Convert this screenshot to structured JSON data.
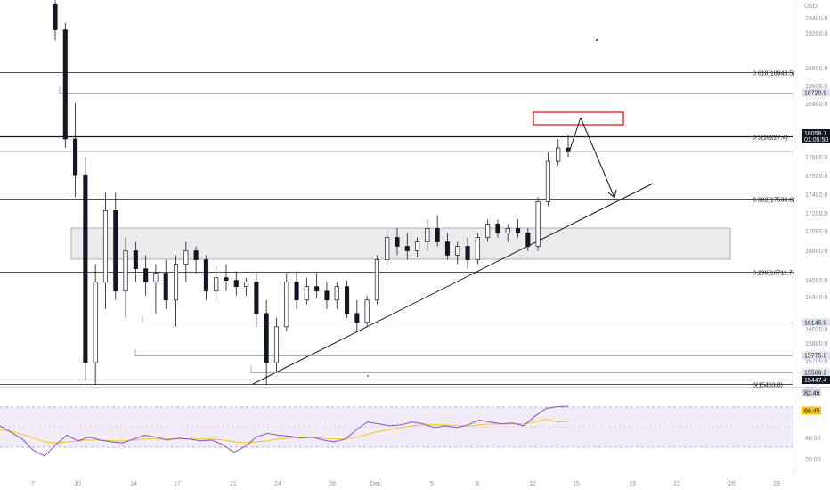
{
  "price_scale": {
    "currency_label": "USD",
    "tick_labels": [
      "19400.0",
      "19200.0",
      "18800.0",
      "18600.0",
      "18400.0",
      "17800.0",
      "17600.0",
      "17400.0",
      "17200.0",
      "17000.0",
      "16800.0",
      "16500.0",
      "16340.0",
      "16020.0",
      "15880.0",
      "15700.0"
    ],
    "level_badges": [
      {
        "label": "18720.9",
        "style": "gray"
      },
      {
        "label": "18227.4",
        "style": "gray"
      },
      {
        "label": "16145.9",
        "style": "gray"
      },
      {
        "label": "15775.6",
        "style": "gray"
      },
      {
        "label": "15589.3",
        "style": "gray"
      }
    ],
    "last_price": {
      "label": "18058.7",
      "countdown": "01:05:50"
    },
    "low_price": {
      "label": "15447.4"
    }
  },
  "fib_levels": [
    {
      "label": "0.618(18948.5)",
      "price": 18948.5
    },
    {
      "label": "0.5(18227.4)",
      "price": 18227.4
    },
    {
      "label": "0.382(17533.6)",
      "price": 17533.6
    },
    {
      "label": "0.236(16711.7)",
      "price": 16711.7
    },
    {
      "label": "0(15463.8)",
      "price": 15463.8
    }
  ],
  "horizontal_levels": [
    18720.9,
    18058.7,
    16145.9,
    15775.6,
    15589.3
  ],
  "time_axis": {
    "tick_labels": [
      "7",
      "10",
      "14",
      "17",
      "21",
      "24",
      "28",
      "Dec",
      "5",
      "8",
      "12",
      "15",
      "19",
      "22",
      "26",
      "29"
    ]
  },
  "rsi_pane": {
    "tick_labels": [
      "40.00",
      "20.00"
    ],
    "current_badges": [
      {
        "label": "82.46",
        "style": "gray"
      },
      {
        "label": "66.45",
        "style": "yellow"
      }
    ]
  },
  "colors": {
    "candle": "#131722",
    "rsi_line": "#7e57c2",
    "rsi_ma": "#f5c518",
    "rsi_band": "#ede7f6",
    "highlight_box": "#e53935",
    "range_box": "#d9dadd"
  },
  "chart_data": {
    "type": "candlestick",
    "price_range": [
      15400,
      19600
    ],
    "series": [
      {
        "name": "",
        "values": [
          [
            19700,
            19750,
            19300,
            19420
          ],
          [
            19420,
            19500,
            18100,
            18200
          ],
          [
            18200,
            18600,
            17550,
            17800
          ],
          [
            17800,
            18000,
            15500,
            15700
          ],
          [
            15700,
            16800,
            15450,
            16600
          ],
          [
            16600,
            17600,
            16300,
            17400
          ],
          [
            17400,
            17600,
            16400,
            16500
          ],
          [
            16500,
            17100,
            16200,
            16950
          ],
          [
            16950,
            17050,
            16600,
            16750
          ],
          [
            16750,
            16900,
            16450,
            16600
          ],
          [
            16600,
            16800,
            16250,
            16700
          ],
          [
            16700,
            16850,
            16300,
            16400
          ],
          [
            16400,
            16900,
            16100,
            16800
          ],
          [
            16800,
            17050,
            16600,
            16950
          ],
          [
            16950,
            17000,
            16700,
            16850
          ],
          [
            16850,
            16900,
            16400,
            16500
          ],
          [
            16500,
            16800,
            16400,
            16650
          ],
          [
            16650,
            16800,
            16500,
            16620
          ],
          [
            16620,
            16720,
            16450,
            16550
          ],
          [
            16550,
            16650,
            16450,
            16600
          ],
          [
            16600,
            16700,
            16100,
            16250
          ],
          [
            16250,
            16400,
            15450,
            15700
          ],
          [
            15700,
            16200,
            15600,
            16100
          ],
          [
            16100,
            16700,
            16050,
            16600
          ],
          [
            16600,
            16720,
            16300,
            16400
          ],
          [
            16400,
            16650,
            16350,
            16550
          ],
          [
            16550,
            16700,
            16420,
            16500
          ],
          [
            16500,
            16600,
            16300,
            16400
          ],
          [
            16400,
            16600,
            16300,
            16550
          ],
          [
            16550,
            16620,
            16200,
            16250
          ],
          [
            16250,
            16400,
            16050,
            16150
          ],
          [
            16150,
            16450,
            16100,
            16400
          ],
          [
            16400,
            16900,
            16350,
            16850
          ],
          [
            16850,
            17200,
            16800,
            17100
          ],
          [
            17100,
            17200,
            16900,
            17000
          ],
          [
            17000,
            17150,
            16850,
            16950
          ],
          [
            16950,
            17100,
            16880,
            17050
          ],
          [
            17050,
            17300,
            16950,
            17200
          ],
          [
            17200,
            17350,
            17000,
            17050
          ],
          [
            17050,
            17150,
            16850,
            16900
          ],
          [
            16900,
            17050,
            16800,
            17000
          ],
          [
            17000,
            17100,
            16750,
            16850
          ],
          [
            16850,
            17150,
            16800,
            17100
          ],
          [
            17100,
            17300,
            17050,
            17250
          ],
          [
            17250,
            17300,
            17100,
            17150
          ],
          [
            17150,
            17250,
            17050,
            17200
          ],
          [
            17200,
            17300,
            17100,
            17150
          ],
          [
            17150,
            17200,
            16950,
            17000
          ],
          [
            17000,
            17550,
            16950,
            17500
          ],
          [
            17500,
            18050,
            17450,
            17950
          ],
          [
            17950,
            18200,
            17900,
            18100
          ],
          [
            18100,
            18250,
            18000,
            18058
          ]
        ]
      }
    ],
    "rsi_range": [
      15,
      90
    ],
    "rsi": [
      62,
      55,
      48,
      36,
      30,
      42,
      52,
      46,
      50,
      47,
      45,
      44,
      48,
      52,
      50,
      47,
      49,
      48,
      46,
      47,
      42,
      34,
      40,
      50,
      54,
      52,
      51,
      49,
      50,
      47,
      45,
      48,
      58,
      66,
      64,
      62,
      63,
      66,
      64,
      60,
      62,
      60,
      63,
      68,
      66,
      64,
      65,
      62,
      72,
      80,
      82,
      82.46
    ],
    "rsi_ma": [
      58,
      56,
      53,
      49,
      45,
      44,
      45,
      46,
      47,
      47,
      46,
      46,
      47,
      48,
      48,
      48,
      48,
      48,
      48,
      48,
      47,
      45,
      44,
      45,
      46,
      48,
      49,
      50,
      50,
      49,
      48,
      48,
      50,
      53,
      56,
      58,
      60,
      62,
      63,
      63,
      63,
      62,
      62,
      63,
      64,
      64,
      64,
      64,
      66,
      69,
      66,
      66.45
    ]
  }
}
